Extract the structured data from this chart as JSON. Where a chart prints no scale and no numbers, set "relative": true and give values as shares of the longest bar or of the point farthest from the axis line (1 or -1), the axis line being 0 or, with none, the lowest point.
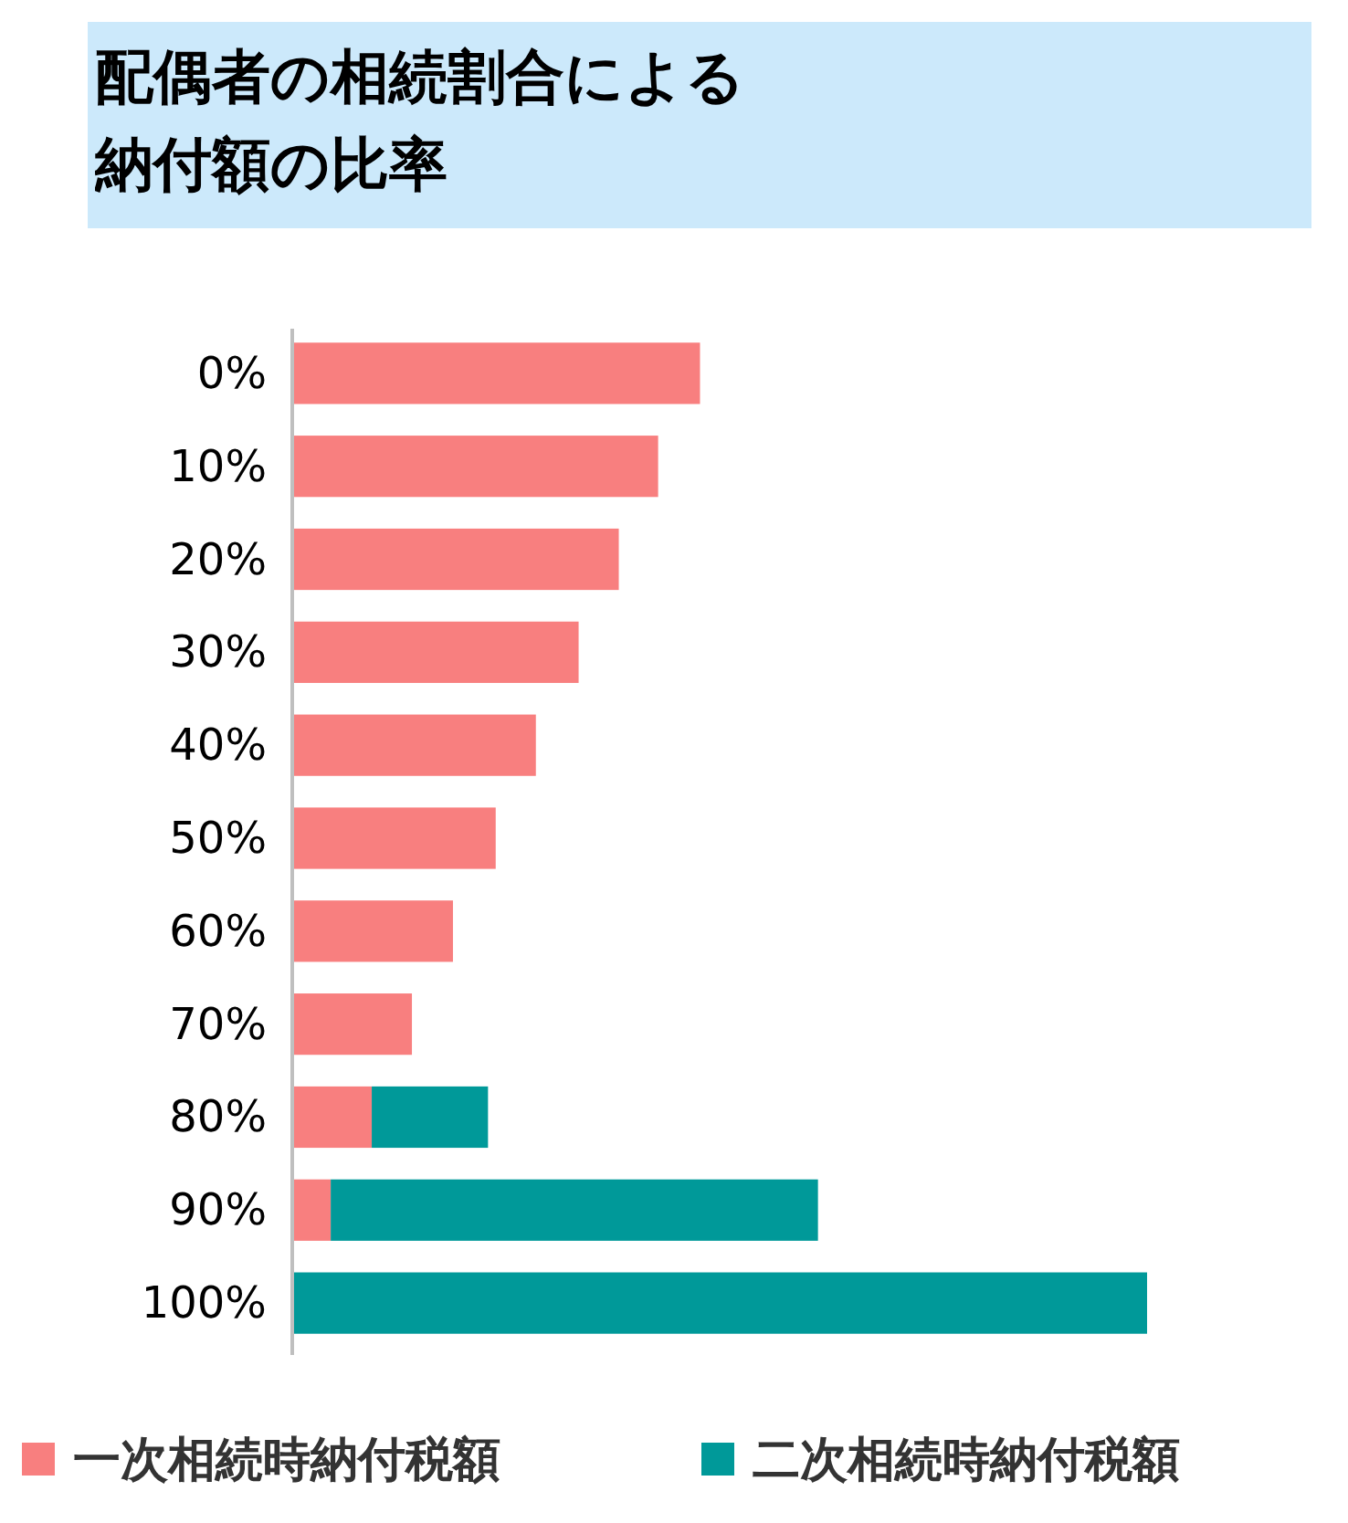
{
  "chart_data": {
    "type": "bar",
    "orientation": "horizontal",
    "stacked": true,
    "relative": true,
    "title": "配偶者の相続割合による納付額の比率",
    "categories": [
      "0%",
      "10%",
      "20%",
      "30%",
      "40%",
      "50%",
      "60%",
      "70%",
      "80%",
      "90%",
      "100%"
    ],
    "series": [
      {
        "name": "一次相続時納付税額",
        "color": "#f87f7f",
        "values": [
          0.477,
          0.428,
          0.382,
          0.335,
          0.285,
          0.238,
          0.188,
          0.14,
          0.093,
          0.045,
          0
        ]
      },
      {
        "name": "二次相続時納付税額",
        "color": "#009999",
        "values": [
          0,
          0,
          0,
          0,
          0,
          0,
          0,
          0,
          0.136,
          0.57,
          1
        ]
      }
    ],
    "legend": "bottom"
  }
}
